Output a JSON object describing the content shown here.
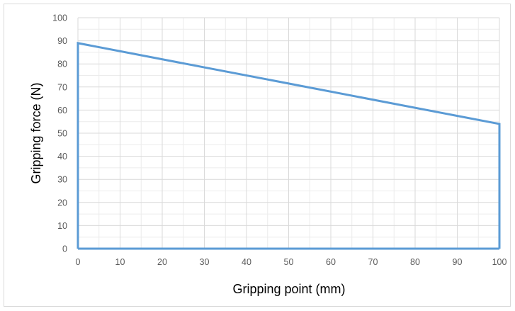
{
  "chart_data": {
    "type": "line",
    "title": "",
    "xlabel": "Gripping point (mm)",
    "ylabel": "Gripping force (N)",
    "xlim": [
      0,
      100
    ],
    "ylim": [
      0,
      100
    ],
    "x_ticks": [
      "0",
      "10",
      "20",
      "30",
      "40",
      "50",
      "60",
      "70",
      "80",
      "90",
      "100"
    ],
    "y_ticks": [
      "0",
      "10",
      "20",
      "30",
      "40",
      "50",
      "60",
      "70",
      "80",
      "90",
      "100"
    ],
    "grid": "major and minor",
    "legend": "none",
    "series": [
      {
        "x": [
          0,
          0,
          100,
          100
        ],
        "y": [
          0,
          89,
          54,
          0
        ],
        "color": "#5b9bd5"
      }
    ],
    "baseline_color": "#5b9bd5",
    "grid_color": "#d9d9d9",
    "minor_grid_color": "#ececec"
  }
}
